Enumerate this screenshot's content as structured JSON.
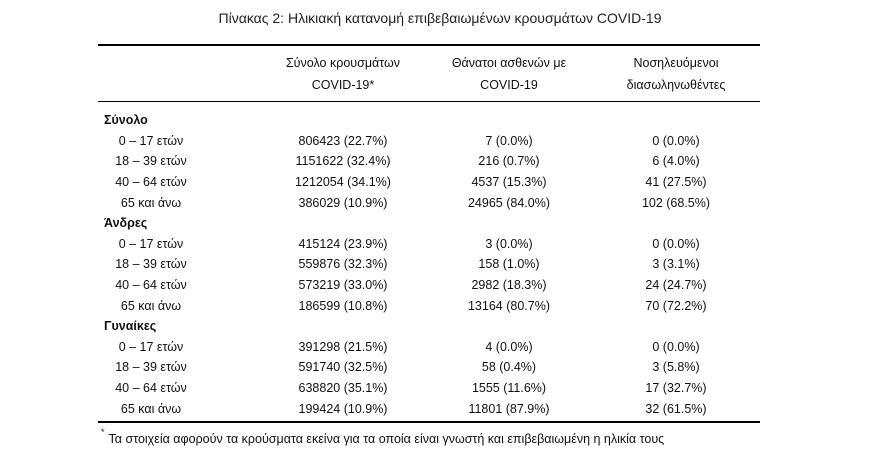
{
  "caption": "Πίνακας 2: Ηλικιακή κατανομή επιβεβαιωμένων κρουσμάτων COVID-19",
  "headers": [
    {
      "line1": "",
      "line2": ""
    },
    {
      "line1": "Σύνολο κρουσμάτων",
      "line2": "COVID-19*"
    },
    {
      "line1": "Θάνατοι ασθενών με",
      "line2": "COVID-19"
    },
    {
      "line1": "Νοσηλευόμενοι",
      "line2": "διασωληνωθέντες"
    }
  ],
  "sections": [
    {
      "title": "Σύνολο",
      "rows": [
        {
          "age": "0 – 17 ετών",
          "cases": "806423 (22.7%)",
          "deaths": "7 (0.0%)",
          "intubated": "0 (0.0%)"
        },
        {
          "age": "18 – 39 ετών",
          "cases": "1151622 (32.4%)",
          "deaths": "216 (0.7%)",
          "intubated": "6 (4.0%)"
        },
        {
          "age": "40 – 64 ετών",
          "cases": "1212054 (34.1%)",
          "deaths": "4537 (15.3%)",
          "intubated": "41 (27.5%)"
        },
        {
          "age": "65 και άνω",
          "cases": "386029 (10.9%)",
          "deaths": "24965 (84.0%)",
          "intubated": "102 (68.5%)"
        }
      ]
    },
    {
      "title": "Άνδρες",
      "rows": [
        {
          "age": "0 – 17 ετών",
          "cases": "415124 (23.9%)",
          "deaths": "3 (0.0%)",
          "intubated": "0 (0.0%)"
        },
        {
          "age": "18 – 39 ετών",
          "cases": "559876 (32.3%)",
          "deaths": "158 (1.0%)",
          "intubated": "3 (3.1%)"
        },
        {
          "age": "40 – 64 ετών",
          "cases": "573219 (33.0%)",
          "deaths": "2982 (18.3%)",
          "intubated": "24 (24.7%)"
        },
        {
          "age": "65 και άνω",
          "cases": "186599 (10.8%)",
          "deaths": "13164 (80.7%)",
          "intubated": "70 (72.2%)"
        }
      ]
    },
    {
      "title": "Γυναίκες",
      "rows": [
        {
          "age": "0 – 17 ετών",
          "cases": "391298 (21.5%)",
          "deaths": "4 (0.0%)",
          "intubated": "0 (0.0%)"
        },
        {
          "age": "18 – 39 ετών",
          "cases": "591740 (32.5%)",
          "deaths": "58 (0.4%)",
          "intubated": "3 (5.8%)"
        },
        {
          "age": "40 – 64 ετών",
          "cases": "638820 (35.1%)",
          "deaths": "1555 (11.6%)",
          "intubated": "17 (32.7%)"
        },
        {
          "age": "65 και άνω",
          "cases": "199424 (10.9%)",
          "deaths": "11801 (87.9%)",
          "intubated": "32 (61.5%)"
        }
      ]
    }
  ],
  "footnote": {
    "marker": "*",
    "text": "Τα στοιχεία αφορούν τα κρούσματα εκείνα για τα οποία είναι γνωστή και επιβεβαιωμένη η ηλικία τους"
  }
}
